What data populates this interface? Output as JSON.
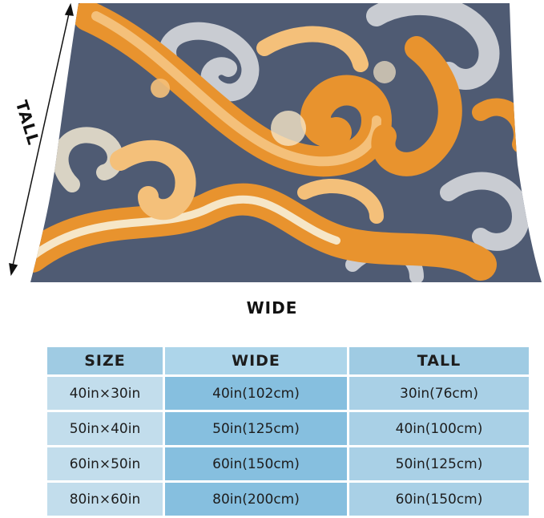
{
  "product": {
    "pattern_colors": {
      "background": "#4f5b73",
      "orange": "#e8932e",
      "light_orange": "#f4c07a",
      "cream": "#f6e6c7",
      "gray_swirl": "#c9ccd2"
    }
  },
  "dimensions": {
    "tall_label": "TALL",
    "wide_label": "WIDE"
  },
  "size_table": {
    "headers": {
      "size": "SIZE",
      "wide": "WIDE",
      "tall": "TALL"
    },
    "rows": [
      {
        "size": "40in×30in",
        "wide": "40in(102cm)",
        "tall": "30in(76cm)"
      },
      {
        "size": "50in×40in",
        "wide": "50in(125cm)",
        "tall": "40in(100cm)"
      },
      {
        "size": "60in×50in",
        "wide": "60in(150cm)",
        "tall": "50in(125cm)"
      },
      {
        "size": "80in×60in",
        "wide": "80in(200cm)",
        "tall": "60in(150cm)"
      }
    ]
  }
}
